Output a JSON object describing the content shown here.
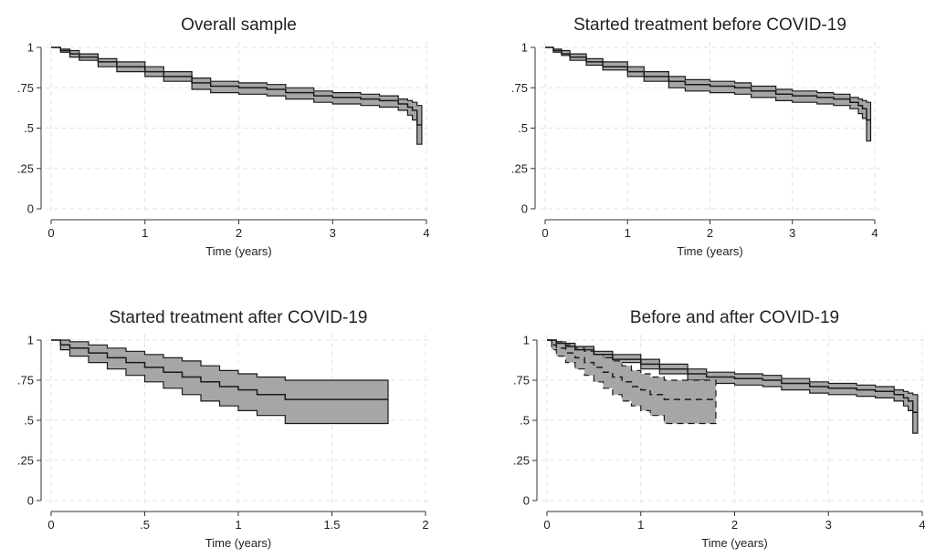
{
  "chart_data": [
    {
      "type": "line",
      "title": "Overall sample",
      "xlabel": "Time (years)",
      "ylabel": "",
      "xlim": [
        0,
        4
      ],
      "ylim": [
        0,
        1
      ],
      "xticks": [
        "0",
        "1",
        "2",
        "3",
        "4"
      ],
      "yticks": [
        "0",
        ".25",
        ".5",
        ".75",
        "1"
      ],
      "grid": true,
      "series": [
        {
          "line": "solid",
          "x": [
            0,
            0.1,
            0.2,
            0.3,
            0.5,
            0.7,
            1.0,
            1.2,
            1.5,
            1.7,
            2.0,
            2.3,
            2.5,
            2.8,
            3.0,
            3.3,
            3.5,
            3.7,
            3.8,
            3.85,
            3.9,
            3.95
          ],
          "y": [
            1,
            0.98,
            0.96,
            0.94,
            0.91,
            0.88,
            0.85,
            0.82,
            0.78,
            0.76,
            0.75,
            0.74,
            0.72,
            0.7,
            0.69,
            0.68,
            0.67,
            0.65,
            0.63,
            0.61,
            0.52,
            0.52
          ],
          "lower": [
            1,
            0.97,
            0.94,
            0.92,
            0.88,
            0.85,
            0.82,
            0.79,
            0.74,
            0.72,
            0.71,
            0.7,
            0.68,
            0.66,
            0.65,
            0.64,
            0.63,
            0.61,
            0.58,
            0.55,
            0.4,
            0.4
          ],
          "upper": [
            1,
            0.99,
            0.98,
            0.96,
            0.93,
            0.91,
            0.88,
            0.85,
            0.81,
            0.79,
            0.78,
            0.77,
            0.75,
            0.73,
            0.72,
            0.71,
            0.7,
            0.68,
            0.67,
            0.66,
            0.64,
            0.64
          ]
        }
      ]
    },
    {
      "type": "line",
      "title": "Started treatment before COVID-19",
      "xlabel": "Time (years)",
      "ylabel": "",
      "xlim": [
        0,
        4
      ],
      "ylim": [
        0,
        1
      ],
      "xticks": [
        "0",
        "1",
        "2",
        "3",
        "4"
      ],
      "yticks": [
        "0",
        ".25",
        ".5",
        ".75",
        "1"
      ],
      "grid": true,
      "series": [
        {
          "line": "solid",
          "x": [
            0,
            0.1,
            0.2,
            0.3,
            0.5,
            0.7,
            1.0,
            1.2,
            1.5,
            1.7,
            2.0,
            2.3,
            2.5,
            2.8,
            3.0,
            3.3,
            3.5,
            3.7,
            3.8,
            3.85,
            3.9,
            3.95
          ],
          "y": [
            1,
            0.98,
            0.96,
            0.94,
            0.91,
            0.88,
            0.85,
            0.82,
            0.79,
            0.77,
            0.76,
            0.75,
            0.73,
            0.71,
            0.7,
            0.69,
            0.68,
            0.66,
            0.64,
            0.62,
            0.55,
            0.55
          ],
          "lower": [
            1,
            0.97,
            0.95,
            0.92,
            0.89,
            0.86,
            0.82,
            0.79,
            0.75,
            0.73,
            0.72,
            0.71,
            0.69,
            0.67,
            0.66,
            0.65,
            0.64,
            0.62,
            0.59,
            0.56,
            0.42,
            0.42
          ],
          "upper": [
            1,
            0.99,
            0.98,
            0.96,
            0.93,
            0.91,
            0.88,
            0.85,
            0.82,
            0.8,
            0.79,
            0.78,
            0.76,
            0.74,
            0.73,
            0.72,
            0.71,
            0.69,
            0.68,
            0.67,
            0.66,
            0.66
          ]
        }
      ]
    },
    {
      "type": "line",
      "title": "Started treatment after COVID-19",
      "xlabel": "Time (years)",
      "ylabel": "",
      "xlim": [
        0,
        2
      ],
      "ylim": [
        0,
        1
      ],
      "xticks": [
        "0",
        ".5",
        "1",
        "1.5",
        "2"
      ],
      "yticks": [
        "0",
        ".25",
        ".5",
        ".75",
        "1"
      ],
      "grid": true,
      "series": [
        {
          "line": "solid",
          "x": [
            0,
            0.05,
            0.1,
            0.2,
            0.3,
            0.4,
            0.5,
            0.6,
            0.7,
            0.8,
            0.9,
            1.0,
            1.1,
            1.25,
            1.8
          ],
          "y": [
            1,
            0.97,
            0.95,
            0.92,
            0.89,
            0.86,
            0.83,
            0.8,
            0.77,
            0.74,
            0.71,
            0.69,
            0.66,
            0.63,
            0.63
          ],
          "lower": [
            1,
            0.94,
            0.9,
            0.86,
            0.82,
            0.78,
            0.74,
            0.7,
            0.66,
            0.62,
            0.59,
            0.56,
            0.53,
            0.48,
            0.48
          ],
          "upper": [
            1,
            1.0,
            0.99,
            0.97,
            0.95,
            0.93,
            0.91,
            0.89,
            0.87,
            0.84,
            0.81,
            0.79,
            0.77,
            0.75,
            0.75
          ]
        }
      ]
    },
    {
      "type": "line",
      "title": "Before and after COVID-19",
      "xlabel": "Time (years)",
      "ylabel": "",
      "xlim": [
        0,
        4
      ],
      "ylim": [
        0,
        1
      ],
      "xticks": [
        "0",
        "1",
        "2",
        "3",
        "4"
      ],
      "yticks": [
        "0",
        ".25",
        ".5",
        ".75",
        "1"
      ],
      "grid": true,
      "series": [
        {
          "line": "solid",
          "x": [
            0,
            0.1,
            0.2,
            0.3,
            0.5,
            0.7,
            1.0,
            1.2,
            1.5,
            1.7,
            2.0,
            2.3,
            2.5,
            2.8,
            3.0,
            3.3,
            3.5,
            3.7,
            3.8,
            3.85,
            3.9,
            3.95
          ],
          "y": [
            1,
            0.98,
            0.96,
            0.94,
            0.91,
            0.88,
            0.85,
            0.82,
            0.79,
            0.77,
            0.76,
            0.75,
            0.73,
            0.71,
            0.7,
            0.69,
            0.68,
            0.66,
            0.64,
            0.62,
            0.55,
            0.55
          ],
          "lower": [
            1,
            0.97,
            0.95,
            0.92,
            0.89,
            0.86,
            0.82,
            0.79,
            0.75,
            0.73,
            0.72,
            0.71,
            0.69,
            0.67,
            0.66,
            0.65,
            0.64,
            0.62,
            0.59,
            0.56,
            0.42,
            0.42
          ],
          "upper": [
            1,
            0.99,
            0.98,
            0.96,
            0.93,
            0.91,
            0.88,
            0.85,
            0.82,
            0.8,
            0.79,
            0.78,
            0.76,
            0.74,
            0.73,
            0.72,
            0.71,
            0.69,
            0.68,
            0.67,
            0.66,
            0.66
          ]
        },
        {
          "line": "dashed",
          "x": [
            0,
            0.05,
            0.1,
            0.2,
            0.3,
            0.4,
            0.5,
            0.6,
            0.7,
            0.8,
            0.9,
            1.0,
            1.1,
            1.25,
            1.8
          ],
          "y": [
            1,
            0.97,
            0.95,
            0.92,
            0.89,
            0.86,
            0.83,
            0.8,
            0.77,
            0.74,
            0.71,
            0.69,
            0.66,
            0.63,
            0.63
          ],
          "lower": [
            1,
            0.94,
            0.9,
            0.86,
            0.82,
            0.78,
            0.74,
            0.7,
            0.66,
            0.62,
            0.59,
            0.56,
            0.53,
            0.48,
            0.48
          ],
          "upper": [
            1,
            1.0,
            0.99,
            0.97,
            0.95,
            0.93,
            0.91,
            0.89,
            0.87,
            0.84,
            0.81,
            0.79,
            0.77,
            0.75,
            0.75
          ]
        }
      ]
    }
  ],
  "colors": {
    "band_fill": "#a6a6a6",
    "line": "#1a1a1a",
    "grid": "#e3e3e3",
    "axis": "#333333"
  }
}
